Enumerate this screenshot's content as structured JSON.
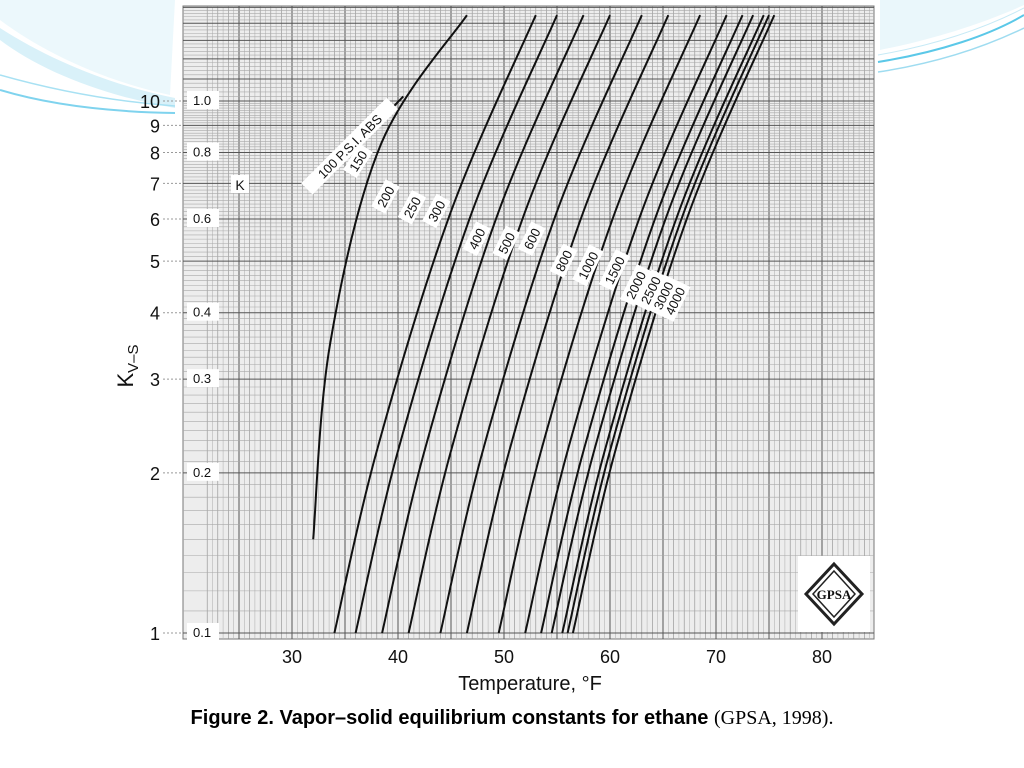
{
  "slide": {
    "caption_bold": "Figure 2. Vapor–solid equilibrium constants for ethane",
    "caption_source": "(GPSA, 1998).",
    "accent_color": "#5bc8e8"
  },
  "chart_data": {
    "type": "line",
    "xlabel": "Temperature, °F",
    "ylabel": "K",
    "ylabel_sub": "V–S",
    "inner_axis_label": "K",
    "x_scale": "linear",
    "y_scale": "log",
    "xlim": [
      22,
      85
    ],
    "ylim": [
      1,
      10
    ],
    "x_ticks": [
      30,
      40,
      50,
      60,
      70,
      80
    ],
    "y_ticks": [
      1,
      2,
      3,
      4,
      5,
      6,
      7,
      8,
      9,
      10
    ],
    "y_tick_labels": [
      "1",
      "2",
      "3",
      "4",
      "5",
      "6",
      "7",
      "8",
      "9",
      "10"
    ],
    "inner_ticks": [
      0.1,
      0.2,
      0.3,
      0.4,
      0.6,
      0.8,
      1.0
    ],
    "inner_tick_labels": [
      "0.1",
      "0.2",
      "0.3",
      "0.4",
      "0.6",
      "0.8",
      "1.0"
    ],
    "grid": true,
    "logo_text": "GPSA",
    "series": [
      {
        "name": "100 P.S.I. ABS",
        "x": [
          32,
          40.5
        ],
        "y": [
          6.8,
          10.2
        ]
      },
      {
        "name": "150",
        "x": [
          32,
          33.6,
          38.4,
          46.5
        ],
        "y": [
          1.5,
          3.5,
          8.3,
          14.5
        ]
      },
      {
        "name": "200",
        "x": [
          34,
          38,
          45,
          53
        ],
        "y": [
          1,
          2.2,
          6.2,
          14.5
        ]
      },
      {
        "name": "250",
        "x": [
          36,
          40,
          47,
          55
        ],
        "y": [
          1,
          2.2,
          6.2,
          14.5
        ]
      },
      {
        "name": "300",
        "x": [
          38.5,
          42.5,
          49.5,
          57.5
        ],
        "y": [
          1,
          2.2,
          6.2,
          14.5
        ]
      },
      {
        "name": "400",
        "x": [
          41,
          45,
          52,
          60
        ],
        "y": [
          1,
          2.2,
          6.2,
          14.5
        ]
      },
      {
        "name": "500",
        "x": [
          44,
          48,
          55,
          63
        ],
        "y": [
          1,
          2.2,
          6.2,
          14.5
        ]
      },
      {
        "name": "600",
        "x": [
          46.5,
          50.5,
          57.5,
          65.5
        ],
        "y": [
          1,
          2.2,
          6.2,
          14.5
        ]
      },
      {
        "name": "800",
        "x": [
          49.5,
          53.5,
          60.5,
          68.5
        ],
        "y": [
          1,
          2.2,
          6.2,
          14.5
        ]
      },
      {
        "name": "1000",
        "x": [
          52,
          56,
          63,
          71
        ],
        "y": [
          1,
          2.2,
          6.2,
          14.5
        ]
      },
      {
        "name": "1500",
        "x": [
          53.5,
          57.5,
          64.5,
          72.5
        ],
        "y": [
          1,
          2.2,
          6.2,
          14.5
        ]
      },
      {
        "name": "2000",
        "x": [
          54.5,
          58.5,
          65.5,
          73.5
        ],
        "y": [
          1,
          2.2,
          6.2,
          14.5
        ]
      },
      {
        "name": "2500",
        "x": [
          55.5,
          59.5,
          66.5,
          74.5
        ],
        "y": [
          1,
          2.2,
          6.2,
          14.5
        ]
      },
      {
        "name": "3000",
        "x": [
          56,
          60,
          67,
          75
        ],
        "y": [
          1,
          2.2,
          6.2,
          14.5
        ]
      },
      {
        "name": "4000",
        "x": [
          56.5,
          60.5,
          67.5,
          75.5
        ],
        "y": [
          1,
          2.2,
          6.2,
          14.5
        ]
      }
    ],
    "curve_labels": [
      {
        "text": "100 P.S.I. ABS",
        "x": 35.5,
        "y": 8.2,
        "angle": -45
      },
      {
        "text": "150",
        "x": 36.3,
        "y": 7.7,
        "angle": -58
      },
      {
        "text": "200",
        "x": 38.9,
        "y": 6.6,
        "angle": -62
      },
      {
        "text": "250",
        "x": 41.4,
        "y": 6.3,
        "angle": -62
      },
      {
        "text": "300",
        "x": 43.7,
        "y": 6.2,
        "angle": -62
      },
      {
        "text": "400",
        "x": 47.5,
        "y": 5.5,
        "angle": -64
      },
      {
        "text": "500",
        "x": 50.3,
        "y": 5.4,
        "angle": -64
      },
      {
        "text": "600",
        "x": 52.7,
        "y": 5.5,
        "angle": -64
      },
      {
        "text": "800",
        "x": 55.7,
        "y": 5.0,
        "angle": -64
      },
      {
        "text": "1000",
        "x": 58.0,
        "y": 4.9,
        "angle": -64
      },
      {
        "text": "1500",
        "x": 60.5,
        "y": 4.8,
        "angle": -64
      },
      {
        "text": "2000",
        "x": 62.5,
        "y": 4.5,
        "angle": -64
      },
      {
        "text": "2500",
        "x": 63.9,
        "y": 4.4,
        "angle": -64
      },
      {
        "text": "3000",
        "x": 65.1,
        "y": 4.3,
        "angle": -64
      },
      {
        "text": "4000",
        "x": 66.2,
        "y": 4.2,
        "angle": -64
      }
    ]
  }
}
